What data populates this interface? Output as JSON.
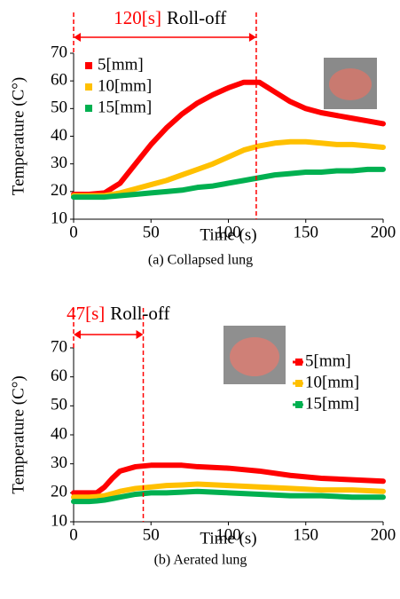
{
  "chart_data": [
    {
      "type": "line",
      "caption": "(a) Collapsed lung",
      "x_label": "Time (s)",
      "y_label": "Temperature (C°)",
      "annotation": {
        "value": 118,
        "label": "120[s]",
        "text": "Roll-off"
      },
      "xlim": [
        0,
        200
      ],
      "xticks": [
        0,
        50,
        100,
        150,
        200
      ],
      "ylim": [
        10,
        70
      ],
      "yticks": [
        10,
        20,
        30,
        40,
        50,
        60,
        70
      ],
      "legend": "upper-left",
      "x": [
        0,
        10,
        20,
        30,
        40,
        50,
        60,
        70,
        80,
        90,
        100,
        110,
        120,
        130,
        140,
        150,
        160,
        170,
        180,
        190,
        200
      ],
      "series": [
        {
          "name": "5[mm]",
          "color": "#ff0000",
          "values": [
            19,
            19,
            19.5,
            23,
            30,
            37,
            43,
            48,
            52,
            55,
            57.5,
            59.5,
            59.5,
            56,
            52.5,
            50,
            48.5,
            47.5,
            46.5,
            45.5,
            44.5
          ]
        },
        {
          "name": "10[mm]",
          "color": "#ffc000",
          "values": [
            18.5,
            18.5,
            18.5,
            19.5,
            21,
            22.5,
            24,
            26,
            28,
            30,
            32.5,
            35,
            36.5,
            37.5,
            38,
            38,
            37.5,
            37,
            37,
            36.5,
            36
          ]
        },
        {
          "name": "15[mm]",
          "color": "#00b050",
          "values": [
            18,
            18,
            18,
            18.5,
            19,
            19.5,
            20,
            20.5,
            21.5,
            22,
            23,
            24,
            25,
            26,
            26.5,
            27,
            27,
            27.5,
            27.5,
            28,
            28
          ]
        }
      ]
    },
    {
      "type": "line",
      "caption": "(b) Aerated lung",
      "x_label": "Time (s)",
      "y_label": "Temperature (C°)",
      "annotation": {
        "value": 45,
        "label": "47[s]",
        "text": "Roll-off"
      },
      "xlim": [
        0,
        200
      ],
      "xticks": [
        0,
        50,
        100,
        150,
        200
      ],
      "ylim": [
        10,
        70
      ],
      "yticks": [
        10,
        20,
        30,
        40,
        50,
        60,
        70
      ],
      "legend": "upper-right",
      "x": [
        0,
        10,
        15,
        20,
        25,
        30,
        40,
        50,
        60,
        70,
        80,
        100,
        120,
        140,
        160,
        180,
        200
      ],
      "series": [
        {
          "name": "5[mm]",
          "color": "#ff0000",
          "values": [
            20,
            20,
            20,
            22,
            25,
            27.5,
            29,
            29.5,
            29.5,
            29.5,
            29,
            28.5,
            27.5,
            26,
            25,
            24.5,
            24
          ]
        },
        {
          "name": "10[mm]",
          "color": "#ffc000",
          "values": [
            18.5,
            18.5,
            18.7,
            19,
            19.7,
            20.5,
            21.5,
            22,
            22.5,
            22.7,
            23,
            22.5,
            22,
            21.5,
            21,
            21,
            20.5
          ]
        },
        {
          "name": "15[mm]",
          "color": "#00b050",
          "values": [
            17,
            17,
            17.2,
            17.5,
            18,
            18.5,
            19.5,
            20,
            20,
            20.2,
            20.5,
            20,
            19.5,
            19,
            19,
            18.5,
            18.5
          ]
        }
      ]
    }
  ]
}
